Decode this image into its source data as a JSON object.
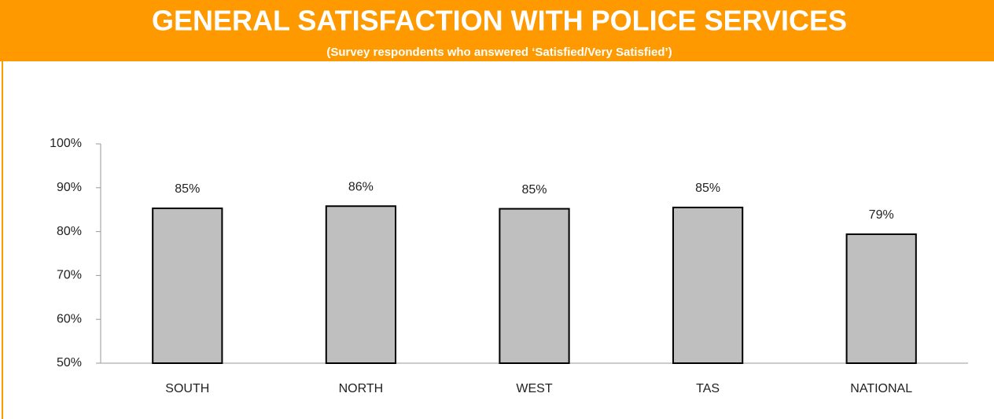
{
  "chart_data": {
    "type": "bar",
    "title": "GENERAL SATISFACTION WITH POLICE SERVICES",
    "subtitle": "(Survey respondents who answered ‘Satisfied/Very Satisfied’)",
    "categories": [
      "SOUTH",
      "NORTH",
      "WEST",
      "TAS",
      "NATIONAL"
    ],
    "values": [
      85.3,
      85.8,
      85.2,
      85.5,
      79.4
    ],
    "value_labels": [
      "85%",
      "86%",
      "85%",
      "85%",
      "79%"
    ],
    "color": "#bfbfbf",
    "ylim": [
      50,
      100
    ],
    "yticks": [
      {
        "value": 50,
        "label": "50%"
      },
      {
        "value": 60,
        "label": "60%"
      },
      {
        "value": 70,
        "label": "70%"
      },
      {
        "value": 80,
        "label": "80%"
      },
      {
        "value": 90,
        "label": "90%"
      },
      {
        "value": 100,
        "label": "100%"
      }
    ],
    "grid": false
  }
}
